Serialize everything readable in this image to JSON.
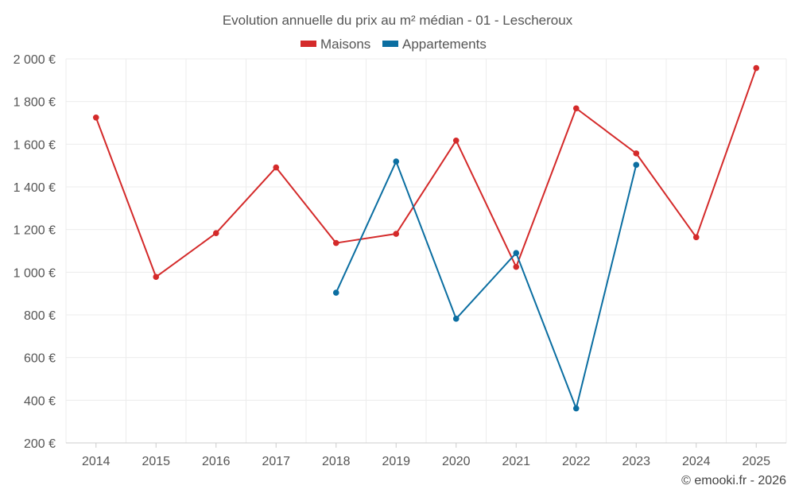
{
  "chart_data": {
    "type": "line",
    "title": "Evolution annuelle du prix au m² médian - 01 - Lescheroux",
    "categories": [
      "2014",
      "2015",
      "2016",
      "2017",
      "2018",
      "2019",
      "2020",
      "2021",
      "2022",
      "2023",
      "2024",
      "2025"
    ],
    "series": [
      {
        "name": "Maisons",
        "color": "#d42a2a",
        "values": [
          1725,
          978,
          1183,
          1491,
          1137,
          1180,
          1617,
          1025,
          1768,
          1557,
          1164,
          1957
        ]
      },
      {
        "name": "Appartements",
        "color": "#0b6ea1",
        "values": [
          null,
          null,
          null,
          null,
          904,
          1519,
          782,
          1090,
          362,
          1503,
          null,
          null
        ]
      }
    ],
    "ylim": [
      200,
      2000
    ],
    "yticks": [
      200,
      400,
      600,
      800,
      1000,
      1200,
      1400,
      1600,
      1800,
      2000
    ],
    "ytick_labels": [
      "200 €",
      "400 €",
      "600 €",
      "800 €",
      "1 000 €",
      "1 200 €",
      "1 400 €",
      "1 600 €",
      "1 800 €",
      "2 000 €"
    ],
    "xlabel": "",
    "ylabel": "",
    "grid": true,
    "legend_position": "top-center"
  },
  "footer": "© emooki.fr - 2026"
}
